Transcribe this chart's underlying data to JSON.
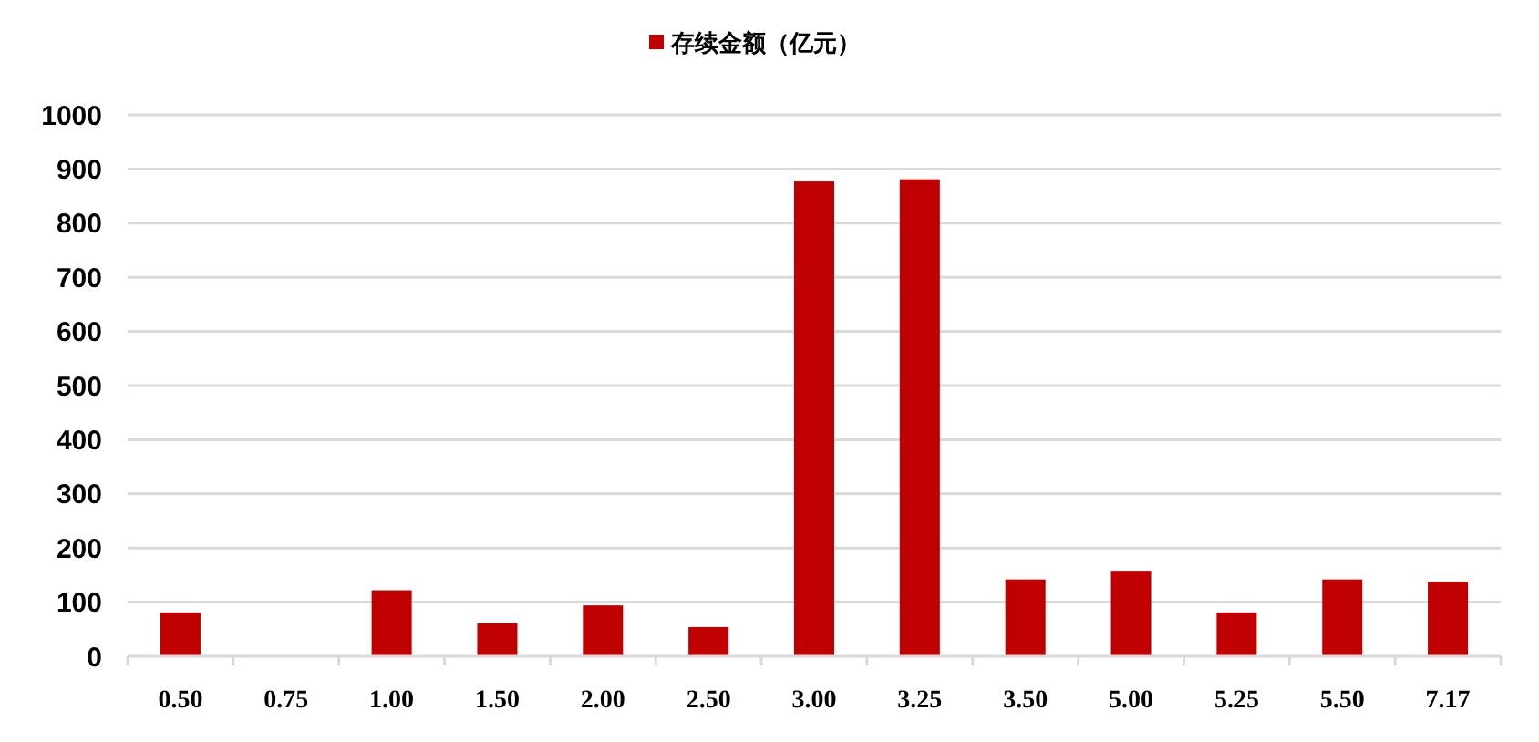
{
  "chart_data": {
    "type": "bar",
    "categories": [
      "0.50",
      "0.75",
      "1.00",
      "1.50",
      "2.00",
      "2.50",
      "3.00",
      "3.25",
      "3.50",
      "5.00",
      "5.25",
      "5.50",
      "7.17"
    ],
    "series": [
      {
        "name": "存续金额（亿元）",
        "color": "#c00000",
        "values": [
          81,
          0,
          122,
          61,
          94,
          54,
          877,
          881,
          142,
          158,
          81,
          142,
          138
        ]
      }
    ],
    "ylim": [
      0,
      1000
    ],
    "yticks": [
      0,
      100,
      200,
      300,
      400,
      500,
      600,
      700,
      800,
      900,
      1000
    ],
    "grid": "y",
    "legend": "top"
  }
}
